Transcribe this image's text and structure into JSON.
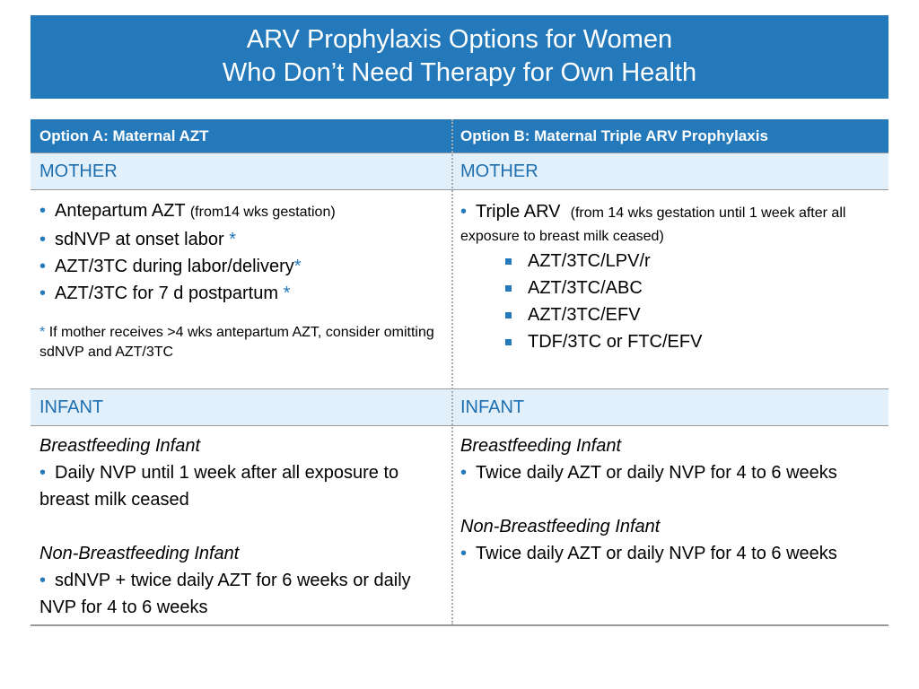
{
  "header": {
    "title": [
      "ARV Prophylaxis Options for Women",
      "Who Don’t Need Therapy for Own Health"
    ]
  },
  "table": {
    "columns": [
      {
        "heading": "Option A: Maternal AZT",
        "mother_label": "MOTHER",
        "mother": {
          "items": [
            {
              "text": "Antepartum AZT",
              "note": "(from14 wks gestation)"
            },
            {
              "text": "sdNVP at onset labor",
              "mark": "*"
            },
            {
              "text": "AZT/3TC during labor/delivery",
              "mark": "*"
            },
            {
              "text": "AZT/3TC for 7 d postpartum",
              "mark": "*"
            }
          ],
          "footnote": {
            "mark": "*",
            "text": "If mother receives >4 wks antepartum AZT, consider omitting sdNVP and AZT/3TC"
          }
        },
        "infant_label": "INFANT",
        "infant": [
          {
            "heading": "Breastfeeding Infant",
            "text": "Daily NVP until 1 week after all exposure to breast milk ceased"
          },
          {
            "heading": "Non-Breastfeeding Infant",
            "text": "sdNVP + twice daily AZT for 6 weeks or daily NVP for 4 to 6 weeks"
          }
        ]
      },
      {
        "heading": "Option B:  Maternal Triple ARV Prophylaxis",
        "mother_label": "MOTHER",
        "mother": {
          "items": [
            {
              "text": "Triple ARV",
              "note": "(from 14 wks gestation until 1 week after all exposure to breast milk ceased)"
            }
          ],
          "subitems": [
            "AZT/3TC/LPV/r",
            "AZT/3TC/ABC",
            "AZT/3TC/EFV",
            "TDF/3TC or FTC/EFV"
          ]
        },
        "infant_label": "INFANT",
        "infant": [
          {
            "heading": "Breastfeeding Infant",
            "text": "Twice daily AZT or daily NVP for 4 to 6 weeks"
          },
          {
            "heading": "Non-Breastfeeding Infant",
            "text": "Twice daily AZT or daily NVP for 4 to 6 weeks"
          }
        ]
      }
    ]
  }
}
